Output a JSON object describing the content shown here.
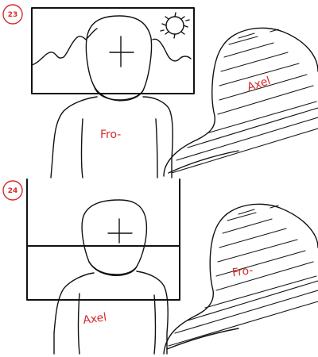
{
  "panels": [
    {
      "number": "23",
      "front_label": "Fro-",
      "back_label": "Axel"
    },
    {
      "number": "24",
      "front_label": "Axel",
      "back_label": "Fro-"
    }
  ],
  "colors": {
    "ink": "#111111",
    "annotation": "#d72b2b",
    "paper": "#ffffff"
  }
}
